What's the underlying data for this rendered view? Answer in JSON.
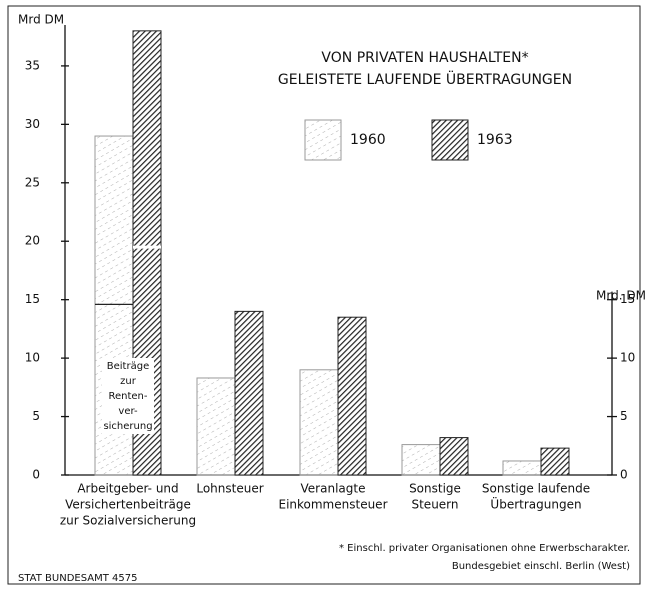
{
  "chart_data": {
    "type": "bar",
    "title": [
      "VON PRIVATEN HAUSHALTEN*",
      "GELEISTETE LAUFENDE ÜBERTRAGUNGEN"
    ],
    "y_label": "Mrd DM",
    "y2_label": "Mrd. DM",
    "categories": [
      [
        "Arbeitgeber- und",
        "Versichertenbeiträge",
        "zur Sozialversicherung"
      ],
      [
        "Lohnsteuer"
      ],
      [
        "Veranlagte",
        "Einkommensteuer"
      ],
      [
        "Sonstige",
        "Steuern"
      ],
      [
        "Sonstige laufende",
        "Übertragungen"
      ]
    ],
    "series": [
      {
        "name": "1960",
        "color": "#999999",
        "values": [
          29,
          8.3,
          9,
          2.6,
          1.2
        ]
      },
      {
        "name": "1963",
        "color": "#222222",
        "values": [
          38,
          14,
          13.5,
          3.2,
          2.3
        ]
      }
    ],
    "pension_share": {
      "label": [
        "Beiträge",
        "zur",
        "Renten-",
        "ver-",
        "sicherung"
      ],
      "values": [
        14.6,
        19.5
      ]
    },
    "ylim": [
      0,
      38.5
    ],
    "yticks": [
      0,
      5,
      10,
      15,
      20,
      25,
      30,
      35
    ],
    "y2lim": [
      0,
      38.5
    ],
    "y2ticks": [
      0,
      5,
      10,
      15
    ],
    "footnote": [
      "* Einschl. privater Organisationen ohne Erwerbscharakter.",
      "Bundesgebiet einschl. Berlin (West)"
    ],
    "source": "STAT BUNDESAMT 4575"
  }
}
